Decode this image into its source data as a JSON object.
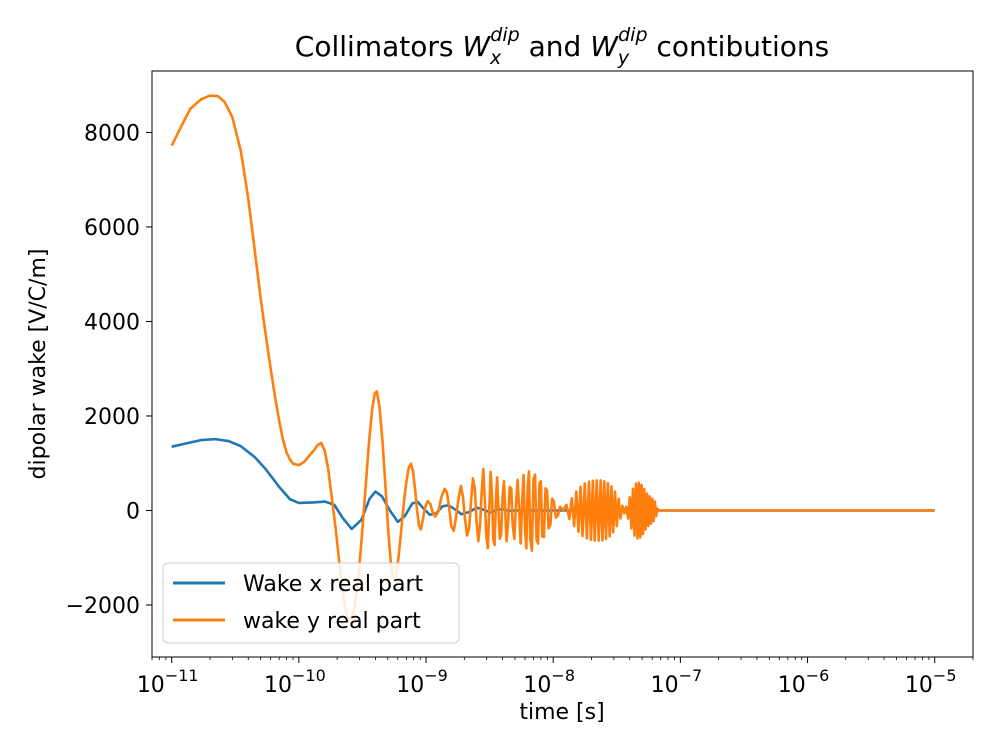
{
  "chart_data": {
    "type": "line",
    "title": {
      "prefix": "Collimators ",
      "sym1": "W",
      "sub1": "x",
      "sup1": "dip",
      "mid": " and ",
      "sym2": "W",
      "sub2": "y",
      "sup2": "dip",
      "suffix": " contibutions"
    },
    "xlabel": "time [s]",
    "ylabel": "dipolar wake [V/C/m]",
    "xscale": "log",
    "xlim": [
      7e-12,
      2e-05
    ],
    "ylim": [
      -3100,
      9300
    ],
    "grid": false,
    "legend": {
      "position": "lower-left"
    },
    "xticks": [
      {
        "base": "10",
        "exp": "−11",
        "value": 1e-11
      },
      {
        "base": "10",
        "exp": "−10",
        "value": 1e-10
      },
      {
        "base": "10",
        "exp": "−9",
        "value": 1e-09
      },
      {
        "base": "10",
        "exp": "−8",
        "value": 1e-08
      },
      {
        "base": "10",
        "exp": "−7",
        "value": 1e-07
      },
      {
        "base": "10",
        "exp": "−6",
        "value": 1e-06
      },
      {
        "base": "10",
        "exp": "−5",
        "value": 1e-05
      }
    ],
    "yticks": [
      {
        "label": "−2000",
        "value": -2000
      },
      {
        "label": "0",
        "value": 0
      },
      {
        "label": "2000",
        "value": 2000
      },
      {
        "label": "4000",
        "value": 4000
      },
      {
        "label": "6000",
        "value": 6000
      },
      {
        "label": "8000",
        "value": 8000
      }
    ],
    "series": [
      {
        "name": "Wake x real part",
        "color": "#1f77b4",
        "points": [
          [
            1e-11,
            1350
          ],
          [
            1.3e-11,
            1420
          ],
          [
            1.7e-11,
            1490
          ],
          [
            2.2e-11,
            1510
          ],
          [
            2.8e-11,
            1470
          ],
          [
            3.5e-11,
            1360
          ],
          [
            4.5e-11,
            1130
          ],
          [
            5.5e-11,
            870
          ],
          [
            7e-11,
            500
          ],
          [
            8.5e-11,
            240
          ],
          [
            1e-10,
            160
          ],
          [
            1.3e-10,
            170
          ],
          [
            1.6e-10,
            190
          ],
          [
            1.9e-10,
            120
          ],
          [
            2.2e-10,
            -150
          ],
          [
            2.6e-10,
            -390
          ],
          [
            3.1e-10,
            -200
          ],
          [
            3.6e-10,
            250
          ],
          [
            4e-10,
            400
          ],
          [
            4.5e-10,
            300
          ],
          [
            5.2e-10,
            0
          ],
          [
            6e-10,
            -240
          ],
          [
            6.8e-10,
            -120
          ],
          [
            7.8e-10,
            150
          ],
          [
            8.6e-10,
            180
          ],
          [
            9.5e-10,
            50
          ],
          [
            1.07e-09,
            -90
          ],
          [
            1.2e-09,
            -60
          ],
          [
            1.35e-09,
            90
          ],
          [
            1.5e-09,
            110
          ],
          [
            1.7e-09,
            20
          ],
          [
            1.9e-09,
            -80
          ],
          [
            2.2e-09,
            -30
          ],
          [
            2.5e-09,
            60
          ],
          [
            2.8e-09,
            20
          ],
          [
            3.2e-09,
            -40
          ],
          [
            3.6e-09,
            10
          ],
          [
            4e-09,
            30
          ],
          [
            4.5e-09,
            -10
          ],
          [
            5e-09,
            0
          ],
          [
            1e-08,
            0
          ],
          [
            1e-07,
            0
          ],
          [
            1e-06,
            0
          ],
          [
            1e-05,
            0
          ]
        ]
      },
      {
        "name": "wake y real part",
        "color": "#ff7f0e",
        "points": [
          [
            1e-11,
            7720
          ],
          [
            1.2e-11,
            8150
          ],
          [
            1.4e-11,
            8500
          ],
          [
            1.7e-11,
            8700
          ],
          [
            2e-11,
            8780
          ],
          [
            2.3e-11,
            8770
          ],
          [
            2.6e-11,
            8650
          ],
          [
            3e-11,
            8320
          ],
          [
            3.5e-11,
            7600
          ],
          [
            4e-11,
            6600
          ],
          [
            4.5e-11,
            5500
          ],
          [
            5e-11,
            4500
          ],
          [
            5.5e-11,
            3700
          ],
          [
            6e-11,
            3000
          ],
          [
            6.5e-11,
            2400
          ],
          [
            7e-11,
            1900
          ],
          [
            7.5e-11,
            1500
          ],
          [
            8e-11,
            1230
          ],
          [
            8.5e-11,
            1080
          ],
          [
            9e-11,
            990
          ],
          [
            1e-10,
            960
          ],
          [
            1.1e-10,
            1030
          ],
          [
            1.2e-10,
            1150
          ],
          [
            1.3e-10,
            1260
          ],
          [
            1.4e-10,
            1380
          ],
          [
            1.5e-10,
            1430
          ],
          [
            1.6e-10,
            1260
          ],
          [
            1.7e-10,
            880
          ],
          [
            1.8e-10,
            350
          ],
          [
            1.95e-10,
            -400
          ],
          [
            2.1e-10,
            -1200
          ],
          [
            2.25e-10,
            -1850
          ],
          [
            2.4e-10,
            -2250
          ],
          [
            2.55e-10,
            -2350
          ],
          [
            2.75e-10,
            -2050
          ],
          [
            2.95e-10,
            -1350
          ],
          [
            3.15e-10,
            -450
          ],
          [
            3.35e-10,
            500
          ],
          [
            3.55e-10,
            1400
          ],
          [
            3.75e-10,
            2100
          ],
          [
            3.95e-10,
            2480
          ],
          [
            4.1e-10,
            2520
          ],
          [
            4.3e-10,
            2200
          ],
          [
            4.55e-10,
            1450
          ],
          [
            4.8e-10,
            500
          ],
          [
            5.05e-10,
            -450
          ],
          [
            5.3e-10,
            -1150
          ],
          [
            5.55e-10,
            -1480
          ],
          [
            5.8e-10,
            -1400
          ],
          [
            6.1e-10,
            -950
          ],
          [
            6.4e-10,
            -380
          ],
          [
            6.7e-10,
            180
          ],
          [
            7e-10,
            600
          ],
          [
            7.3e-10,
            900
          ],
          [
            7.6e-10,
            990
          ],
          [
            7.9e-10,
            830
          ],
          [
            8.2e-10,
            450
          ],
          [
            8.5e-10,
            0
          ],
          [
            8.8e-10,
            -320
          ],
          [
            9.1e-10,
            -400
          ],
          [
            9.4e-10,
            -220
          ],
          [
            9.8e-10,
            50
          ],
          [
            1.03e-09,
            200
          ],
          [
            1.08e-09,
            140
          ],
          [
            1.13e-09,
            -40
          ],
          [
            1.18e-09,
            -130
          ],
          [
            1.25e-09,
            -20
          ],
          [
            1.32e-09,
            280
          ],
          [
            1.4e-09,
            460
          ],
          [
            1.46e-09,
            380
          ],
          [
            1.52e-09,
            50
          ],
          [
            1.58e-09,
            -330
          ],
          [
            1.65e-09,
            -430
          ],
          [
            1.72e-09,
            -150
          ],
          [
            1.8e-09,
            250
          ],
          [
            1.88e-09,
            520
          ],
          [
            1.95e-09,
            300
          ],
          [
            2.02e-09,
            -150
          ],
          [
            2.1e-09,
            -530
          ],
          [
            2.18e-09,
            -380
          ],
          [
            2.26e-09,
            200
          ],
          [
            2.34e-09,
            680
          ],
          [
            2.42e-09,
            450
          ],
          [
            2.5e-09,
            -250
          ],
          [
            2.58e-09,
            -650
          ],
          [
            2.66e-09,
            -300
          ],
          [
            2.74e-09,
            400
          ],
          [
            2.82e-09,
            880
          ],
          [
            2.9e-09,
            200
          ],
          [
            2.98e-09,
            -550
          ],
          [
            3.06e-09,
            -800
          ],
          [
            3.14e-09,
            0
          ],
          [
            3.22e-09,
            820
          ],
          [
            3.3e-09,
            320
          ],
          [
            3.38e-09,
            -600
          ],
          [
            3.46e-09,
            -730
          ],
          [
            3.54e-09,
            150
          ],
          [
            3.62e-09,
            700
          ],
          [
            3.7e-09,
            100
          ],
          [
            3.8e-09,
            -600
          ],
          [
            3.9e-09,
            -500
          ],
          [
            4e-09,
            300
          ],
          [
            4.1e-09,
            620
          ],
          [
            4.2e-09,
            -50
          ],
          [
            4.3e-09,
            -650
          ],
          [
            4.42e-09,
            -250
          ],
          [
            4.55e-09,
            500
          ],
          [
            4.68e-09,
            460
          ],
          [
            4.8e-09,
            -300
          ],
          [
            4.95e-09,
            -600
          ],
          [
            5.1e-09,
            150
          ],
          [
            5.25e-09,
            650
          ],
          [
            5.4e-09,
            0
          ],
          [
            5.55e-09,
            -700
          ],
          [
            5.7e-09,
            200
          ],
          [
            5.85e-09,
            750
          ],
          [
            6e-09,
            -400
          ],
          [
            6.15e-09,
            -800
          ],
          [
            6.3e-09,
            500
          ],
          [
            6.45e-09,
            830
          ],
          [
            6.6e-09,
            -600
          ],
          [
            6.8e-09,
            -850
          ],
          [
            7e-09,
            650
          ],
          [
            7.2e-09,
            760
          ],
          [
            7.4e-09,
            -620
          ],
          [
            7.6e-09,
            -700
          ],
          [
            7.8e-09,
            580
          ],
          [
            8e-09,
            620
          ],
          [
            8.2e-09,
            -550
          ],
          [
            8.45e-09,
            -560
          ],
          [
            8.7e-09,
            470
          ],
          [
            8.95e-09,
            420
          ],
          [
            9.2e-09,
            -380
          ],
          [
            9.5e-09,
            -300
          ],
          [
            9.8e-09,
            250
          ],
          [
            1.01e-08,
            200
          ],
          [
            1.05e-08,
            -150
          ],
          [
            1.09e-08,
            -100
          ],
          [
            1.13e-08,
            80
          ],
          [
            1.2e-08,
            0
          ],
          [
            1.27e-08,
            120
          ],
          [
            1.34e-08,
            -180
          ],
          [
            1.4e-08,
            260
          ],
          [
            1.46e-08,
            -330
          ],
          [
            1.52e-08,
            400
          ],
          [
            1.58e-08,
            -450
          ],
          [
            1.64e-08,
            500
          ],
          [
            1.7e-08,
            -540
          ],
          [
            1.77e-08,
            570
          ],
          [
            1.84e-08,
            -590
          ],
          [
            1.91e-08,
            610
          ],
          [
            1.98e-08,
            -620
          ],
          [
            2.05e-08,
            630
          ],
          [
            2.12e-08,
            -640
          ],
          [
            2.2e-08,
            640
          ],
          [
            2.28e-08,
            -640
          ],
          [
            2.36e-08,
            640
          ],
          [
            2.44e-08,
            -630
          ],
          [
            2.52e-08,
            620
          ],
          [
            2.6e-08,
            -600
          ],
          [
            2.69e-08,
            580
          ],
          [
            2.78e-08,
            -550
          ],
          [
            2.87e-08,
            510
          ],
          [
            2.96e-08,
            -460
          ],
          [
            3.06e-08,
            400
          ],
          [
            3.16e-08,
            -330
          ],
          [
            3.27e-08,
            250
          ],
          [
            3.38e-08,
            -170
          ],
          [
            3.5e-08,
            100
          ],
          [
            3.62e-08,
            -60
          ],
          [
            3.75e-08,
            80
          ],
          [
            3.88e-08,
            -170
          ],
          [
            4e-08,
            280
          ],
          [
            4.12e-08,
            -380
          ],
          [
            4.24e-08,
            460
          ],
          [
            4.36e-08,
            -530
          ],
          [
            4.48e-08,
            570
          ],
          [
            4.6e-08,
            -590
          ],
          [
            4.72e-08,
            590
          ],
          [
            4.84e-08,
            -570
          ],
          [
            4.96e-08,
            540
          ],
          [
            5.08e-08,
            -500
          ],
          [
            5.2e-08,
            450
          ],
          [
            5.33e-08,
            -400
          ],
          [
            5.46e-08,
            360
          ],
          [
            5.6e-08,
            -330
          ],
          [
            5.74e-08,
            300
          ],
          [
            5.88e-08,
            -280
          ],
          [
            6.02e-08,
            250
          ],
          [
            6.16e-08,
            -220
          ],
          [
            6.3e-08,
            190
          ],
          [
            6.45e-08,
            -120
          ],
          [
            6.6e-08,
            40
          ],
          [
            6.8e-08,
            0
          ],
          [
            1e-07,
            0
          ],
          [
            1e-06,
            0
          ],
          [
            1e-05,
            0
          ]
        ]
      }
    ]
  }
}
